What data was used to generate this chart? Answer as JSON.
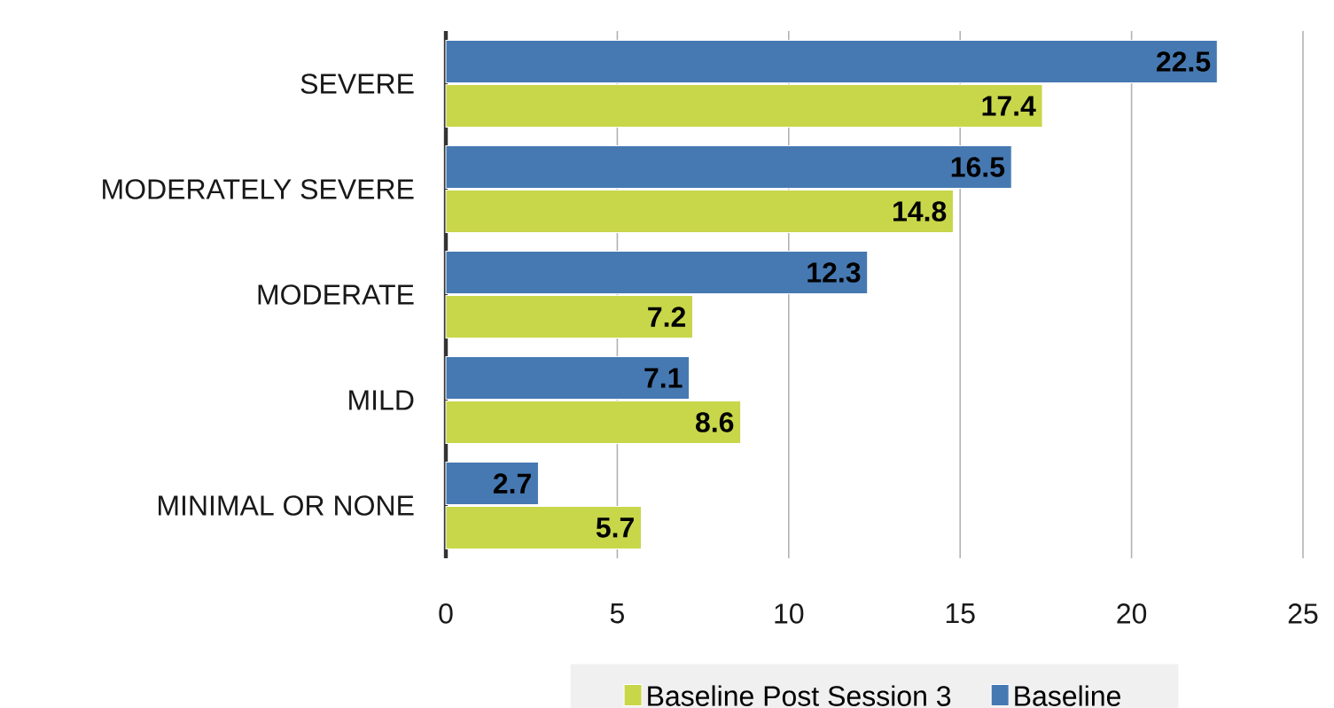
{
  "chart_data": {
    "type": "bar",
    "orientation": "horizontal",
    "categories": [
      "SEVERE",
      "MODERATELY SEVERE",
      "MODERATE",
      "MILD",
      "MINIMAL OR NONE"
    ],
    "series": [
      {
        "name": "Baseline Post Session 3",
        "color": "#c8d64a",
        "values": [
          17.4,
          14.8,
          7.2,
          8.6,
          5.7
        ]
      },
      {
        "name": "Baseline",
        "color": "#4679b2",
        "values": [
          22.5,
          16.5,
          12.3,
          7.1,
          2.7
        ]
      }
    ],
    "xlim": [
      0,
      25
    ],
    "xticks": [
      0,
      5,
      10,
      15,
      20,
      25
    ],
    "grid": "x",
    "legend": "bottom",
    "data_labels": true
  }
}
